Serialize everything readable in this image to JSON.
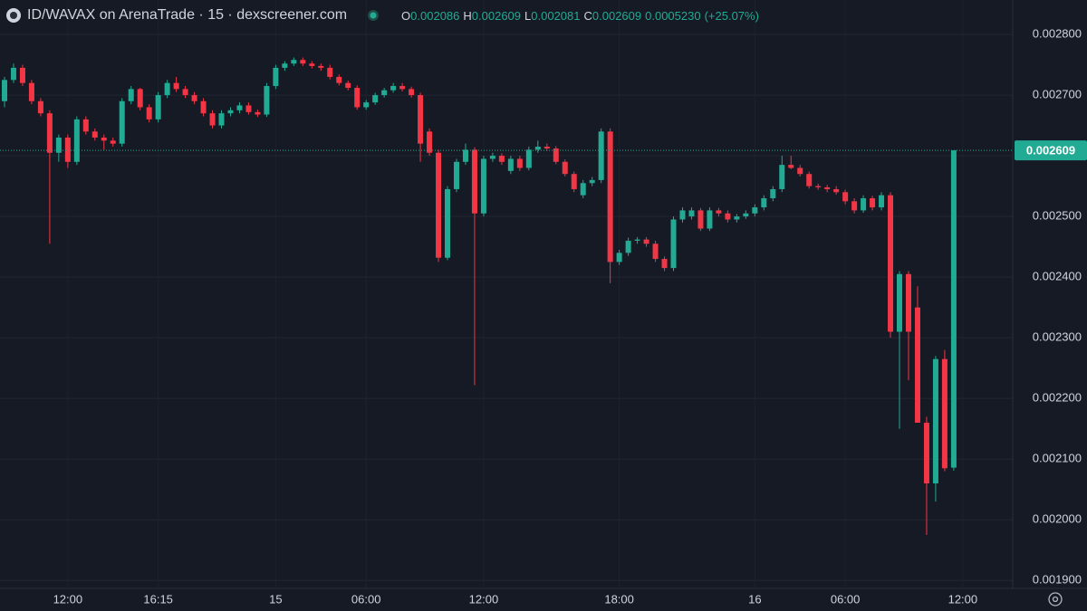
{
  "header": {
    "title": "ID/WAVAX on ArenaTrade · 15 · dexscreener.com",
    "ohlc": [
      {
        "key": "O",
        "value": "0.002086"
      },
      {
        "key": "H",
        "value": "0.002609"
      },
      {
        "key": "L",
        "value": "0.002081"
      },
      {
        "key": "C",
        "value": "0.002609"
      }
    ],
    "change": "0.0005230",
    "change_pct": "(+25.07%)"
  },
  "chart_data": {
    "type": "candlestick",
    "categories": [
      null,
      null,
      null,
      null,
      null,
      null,
      null,
      "12:00",
      null,
      null,
      null,
      null,
      null,
      null,
      null,
      null,
      null,
      "16:15",
      null,
      null,
      null,
      null,
      null,
      null,
      null,
      null,
      null,
      null,
      null,
      null,
      "15",
      null,
      null,
      null,
      null,
      null,
      null,
      null,
      null,
      null,
      "06:00",
      null,
      null,
      null,
      null,
      null,
      null,
      null,
      null,
      null,
      null,
      null,
      null,
      "12:00",
      null,
      null,
      null,
      null,
      null,
      null,
      null,
      null,
      null,
      null,
      null,
      null,
      null,
      null,
      "18:00",
      null,
      null,
      null,
      null,
      null,
      null,
      null,
      null,
      null,
      null,
      null,
      null,
      null,
      null,
      "16",
      null,
      null,
      null,
      null,
      null,
      null,
      null,
      null,
      null,
      "06:00",
      null,
      null,
      null,
      null,
      null,
      null,
      null,
      null,
      null,
      null,
      null,
      null,
      "12:00"
    ],
    "open": [
      0.00269,
      0.002725,
      0.002745,
      0.00272,
      0.00269,
      0.00267,
      0.002605,
      0.00263,
      0.00259,
      0.00266,
      0.00264,
      0.00263,
      0.002625,
      0.00262,
      0.00269,
      0.00271,
      0.00268,
      0.00266,
      0.0027,
      0.00272,
      0.00271,
      0.0027,
      0.00269,
      0.00267,
      0.00265,
      0.00267,
      0.002675,
      0.002683,
      0.002672,
      0.002668,
      0.002715,
      0.002745,
      0.002752,
      0.002758,
      0.002752,
      0.002748,
      0.002745,
      0.00273,
      0.00272,
      0.002712,
      0.00268,
      0.002688,
      0.0027,
      0.002708,
      0.002715,
      0.00271,
      0.0027,
      0.00264,
      0.002605,
      0.002432,
      0.002545,
      0.00259,
      0.00261,
      0.002505,
      0.002595,
      0.0026,
      0.002575,
      0.002595,
      0.00258,
      0.00261,
      0.002615,
      0.002612,
      0.00259,
      0.00257,
      0.002535,
      0.002555,
      0.00256,
      0.00264,
      0.002425,
      0.00244,
      0.00246,
      0.002462,
      0.002455,
      0.00243,
      0.002415,
      0.002495,
      0.0025,
      0.00251,
      0.00248,
      0.00251,
      0.002505,
      0.002495,
      0.0025,
      0.002505,
      0.002515,
      0.00253,
      0.002545,
      0.002585,
      0.00258,
      0.00257,
      0.00255,
      0.002548,
      0.002545,
      0.00254,
      0.002525,
      0.00251,
      0.00253,
      0.002515,
      0.002535,
      0.00231,
      0.002405,
      0.00235,
      0.00216,
      0.00206,
      0.002265,
      0.002086,
      null
    ],
    "high": [
      0.00273,
      0.002752,
      0.00275,
      0.002725,
      0.002695,
      0.002675,
      0.002635,
      0.002635,
      0.002665,
      0.002665,
      0.002645,
      0.002635,
      0.00263,
      0.002695,
      0.002715,
      0.002712,
      0.002685,
      0.002705,
      0.002725,
      0.00273,
      0.002715,
      0.002705,
      0.002695,
      0.002675,
      0.002675,
      0.00268,
      0.002688,
      0.002688,
      0.002676,
      0.00272,
      0.00275,
      0.002756,
      0.002762,
      0.002762,
      0.002756,
      0.002752,
      0.00275,
      0.002734,
      0.002724,
      0.002716,
      0.002692,
      0.002704,
      0.002712,
      0.00272,
      0.00272,
      0.002714,
      0.002704,
      0.002645,
      0.00261,
      0.00255,
      0.002595,
      0.00262,
      0.002614,
      0.0026,
      0.002605,
      0.002604,
      0.0026,
      0.0026,
      0.002615,
      0.002625,
      0.00262,
      0.002616,
      0.002594,
      0.002574,
      0.00256,
      0.002565,
      0.002645,
      0.002645,
      0.002445,
      0.002465,
      0.002466,
      0.002466,
      0.00246,
      0.002434,
      0.0025,
      0.002515,
      0.002515,
      0.002514,
      0.002515,
      0.002514,
      0.00251,
      0.002504,
      0.00251,
      0.00252,
      0.002535,
      0.00255,
      0.0026,
      0.0026,
      0.002585,
      0.002574,
      0.002554,
      0.002552,
      0.00255,
      0.002544,
      0.00253,
      0.002535,
      0.002534,
      0.00254,
      0.00254,
      0.00241,
      0.00241,
      0.002385,
      0.00217,
      0.00227,
      0.00228,
      0.002609,
      null
    ],
    "low": [
      0.00268,
      0.00272,
      0.002715,
      0.002685,
      0.002665,
      0.002455,
      0.00259,
      0.00258,
      0.002585,
      0.002635,
      0.002625,
      0.00261,
      0.002615,
      0.002615,
      0.002685,
      0.002675,
      0.002655,
      0.002655,
      0.002695,
      0.002705,
      0.002695,
      0.002685,
      0.002665,
      0.002645,
      0.002645,
      0.002665,
      0.00267,
      0.002668,
      0.002664,
      0.002664,
      0.00271,
      0.00274,
      0.002748,
      0.002748,
      0.002744,
      0.00274,
      0.002726,
      0.002716,
      0.002708,
      0.002676,
      0.002676,
      0.002684,
      0.002696,
      0.002704,
      0.002706,
      0.002696,
      0.00259,
      0.0026,
      0.002425,
      0.002428,
      0.00254,
      0.002585,
      0.002222,
      0.0025,
      0.00259,
      0.002585,
      0.00257,
      0.002575,
      0.002576,
      0.002605,
      0.002608,
      0.002586,
      0.002566,
      0.00254,
      0.00253,
      0.00255,
      0.002555,
      0.00239,
      0.00242,
      0.002435,
      0.002455,
      0.00245,
      0.002425,
      0.00241,
      0.00241,
      0.00249,
      0.002495,
      0.002476,
      0.002476,
      0.0025,
      0.00249,
      0.00249,
      0.002496,
      0.0025,
      0.00251,
      0.002525,
      0.00254,
      0.002578,
      0.002566,
      0.002546,
      0.002544,
      0.00254,
      0.002536,
      0.00252,
      0.002505,
      0.002506,
      0.00251,
      0.00251,
      0.0023,
      0.00215,
      0.00223,
      0.00216,
      0.001975,
      0.00203,
      0.00208,
      0.002081,
      null
    ],
    "close": [
      0.002725,
      0.002745,
      0.00272,
      0.00269,
      0.00267,
      0.002605,
      0.00263,
      0.00259,
      0.00266,
      0.00264,
      0.00263,
      0.002625,
      0.00262,
      0.00269,
      0.00271,
      0.00268,
      0.00266,
      0.0027,
      0.00272,
      0.00271,
      0.0027,
      0.00269,
      0.00267,
      0.00265,
      0.00267,
      0.002675,
      0.002683,
      0.002672,
      0.002668,
      0.002715,
      0.002745,
      0.002752,
      0.002758,
      0.002752,
      0.002748,
      0.002745,
      0.00273,
      0.00272,
      0.002712,
      0.00268,
      0.002688,
      0.0027,
      0.002708,
      0.002715,
      0.00271,
      0.0027,
      0.00262,
      0.002605,
      0.002432,
      0.002545,
      0.00259,
      0.00261,
      0.002505,
      0.002595,
      0.0026,
      0.00259,
      0.002595,
      0.00258,
      0.00261,
      0.002615,
      0.002612,
      0.00259,
      0.00257,
      0.002545,
      0.002555,
      0.00256,
      0.00264,
      0.002425,
      0.00244,
      0.00246,
      0.002462,
      0.002455,
      0.00243,
      0.002415,
      0.002495,
      0.00251,
      0.00251,
      0.00248,
      0.00251,
      0.002505,
      0.002495,
      0.0025,
      0.002505,
      0.002515,
      0.00253,
      0.002545,
      0.002585,
      0.00258,
      0.00257,
      0.00255,
      0.002548,
      0.002545,
      0.00254,
      0.002525,
      0.00251,
      0.00253,
      0.002515,
      0.002535,
      0.00231,
      0.002405,
      0.00231,
      0.00216,
      0.00206,
      0.002265,
      0.002085,
      0.002609,
      null
    ],
    "up_color": "#22ab94",
    "down_color": "#f23645",
    "ylim": [
      0.001887,
      0.002812
    ],
    "yticks": [
      {
        "value": 0.0019,
        "label": "0.001900"
      },
      {
        "value": 0.002,
        "label": "0.002000"
      },
      {
        "value": 0.0021,
        "label": "0.002100"
      },
      {
        "value": 0.0022,
        "label": "0.002200"
      },
      {
        "value": 0.0023,
        "label": "0.002300"
      },
      {
        "value": 0.0024,
        "label": "0.002400"
      },
      {
        "value": 0.0025,
        "label": "0.002500"
      },
      {
        "value": 0.0026,
        "label": "0.002600"
      },
      {
        "value": 0.0027,
        "label": "0.002700"
      },
      {
        "value": 0.0028,
        "label": "0.002800"
      }
    ],
    "price_line": {
      "value": 0.002609,
      "label": "0.002609"
    },
    "grid": true
  }
}
